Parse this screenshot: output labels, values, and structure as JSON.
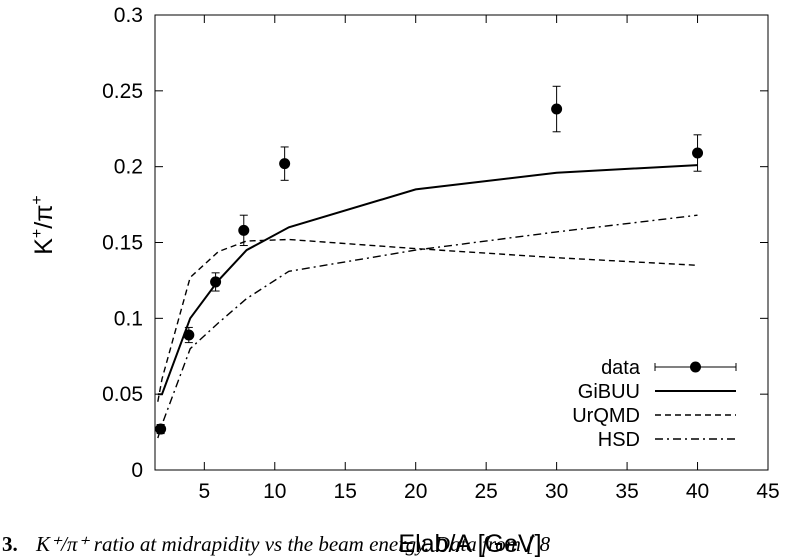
{
  "chart_data": {
    "type": "line",
    "xlabel": "Elab/A [GeV]",
    "ylabel_base": "K",
    "ylabel_sup1": "+",
    "ylabel_mid": "/π",
    "ylabel_sup2": "+",
    "xlim": [
      1.5,
      45
    ],
    "ylim": [
      0,
      0.3
    ],
    "xticks": [
      5,
      10,
      15,
      20,
      25,
      30,
      35,
      40,
      45
    ],
    "yticks": [
      0,
      0.05,
      0.1,
      0.15,
      0.2,
      0.25,
      0.3
    ],
    "xtick_labels": [
      "5",
      "10",
      "15",
      "20",
      "25",
      "30",
      "35",
      "40",
      "45"
    ],
    "ytick_labels": [
      "0",
      "0.05",
      "0.1",
      "0.15",
      "0.2",
      "0.25",
      "0.3"
    ],
    "grid": false,
    "legend_position": "bottom-right",
    "series": [
      {
        "name": "data",
        "kind": "points",
        "x": [
          1.9,
          3.9,
          5.8,
          7.8,
          10.7,
          30,
          40
        ],
        "y": [
          0.027,
          0.089,
          0.124,
          0.158,
          0.202,
          0.238,
          0.209
        ],
        "yerr": [
          0.003,
          0.005,
          0.006,
          0.01,
          0.011,
          0.015,
          0.012
        ]
      },
      {
        "name": "GiBUU",
        "kind": "line",
        "style": "solid",
        "x": [
          1.7,
          2,
          4,
          6,
          8,
          11,
          20,
          30,
          40
        ],
        "y": [
          0.05,
          0.05,
          0.1,
          0.125,
          0.145,
          0.16,
          0.185,
          0.196,
          0.201
        ]
      },
      {
        "name": "UrQMD",
        "kind": "line",
        "style": "dashed",
        "x": [
          1.7,
          2,
          4,
          6,
          8,
          11,
          20,
          30,
          40
        ],
        "y": [
          0.045,
          0.06,
          0.127,
          0.144,
          0.151,
          0.152,
          0.146,
          0.14,
          0.135
        ]
      },
      {
        "name": "HSD",
        "kind": "line",
        "style": "dashdot",
        "x": [
          1.7,
          2,
          4,
          6,
          8,
          11,
          20,
          30,
          40
        ],
        "y": [
          0.021,
          0.03,
          0.08,
          0.097,
          0.113,
          0.131,
          0.145,
          0.157,
          0.168
        ]
      }
    ]
  },
  "caption": {
    "fig_fragment": "3.",
    "text": "K⁺/π⁺ ratio at midrapidity vs the beam energy. Data from [ 8"
  }
}
